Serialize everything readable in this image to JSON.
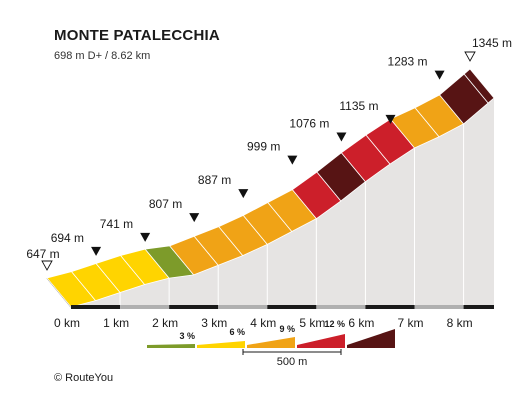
{
  "header": {
    "title": "MONTE PATALECCHIA",
    "subtitle": "698 m D+ / 8.62 km"
  },
  "footer": {
    "credit": "© RouteYou"
  },
  "chart_data": {
    "type": "area",
    "title": "MONTE PATALECCHIA",
    "subtitle": "698 m D+ / 8.62 km",
    "x_unit": "km",
    "x_ticks": [
      "0 km",
      "1 km",
      "2 km",
      "3 km",
      "4 km",
      "5 km",
      "6 km",
      "7 km",
      "8 km"
    ],
    "xlim": [
      0,
      8.62
    ],
    "ylim": [
      647,
      1345
    ],
    "elevations": [
      {
        "km": 0,
        "label": "647 m",
        "marker": "start"
      },
      {
        "km": 1,
        "label": "694 m",
        "marker": "km"
      },
      {
        "km": 2,
        "label": "741 m",
        "marker": "km"
      },
      {
        "km": 3,
        "label": "807 m",
        "marker": "km"
      },
      {
        "km": 4,
        "label": "887 m",
        "marker": "km"
      },
      {
        "km": 5,
        "label": "999 m",
        "marker": "km"
      },
      {
        "km": 6,
        "label": "1076 m",
        "marker": "km"
      },
      {
        "km": 7,
        "label": "1135 m",
        "marker": "km"
      },
      {
        "km": 8,
        "label": "1283 m",
        "marker": "km"
      },
      {
        "km": 8.62,
        "label": "1345 m",
        "marker": "end"
      }
    ],
    "segment_length_m": 500,
    "segment_grades_pct": [
      4,
      5,
      5,
      4,
      2,
      6,
      6,
      7,
      8,
      8,
      11,
      12,
      11,
      10,
      7,
      8,
      13,
      13
    ],
    "legend": {
      "grades": [
        "3 %",
        "6 %",
        "9 %",
        "12 %"
      ],
      "scale_label": "500 m",
      "colors": {
        "g2": "#7d9b2a",
        "g3": "#ffd400",
        "g6": "#f0a316",
        "g9": "#cc1f2a",
        "g12": "#571414"
      }
    }
  }
}
